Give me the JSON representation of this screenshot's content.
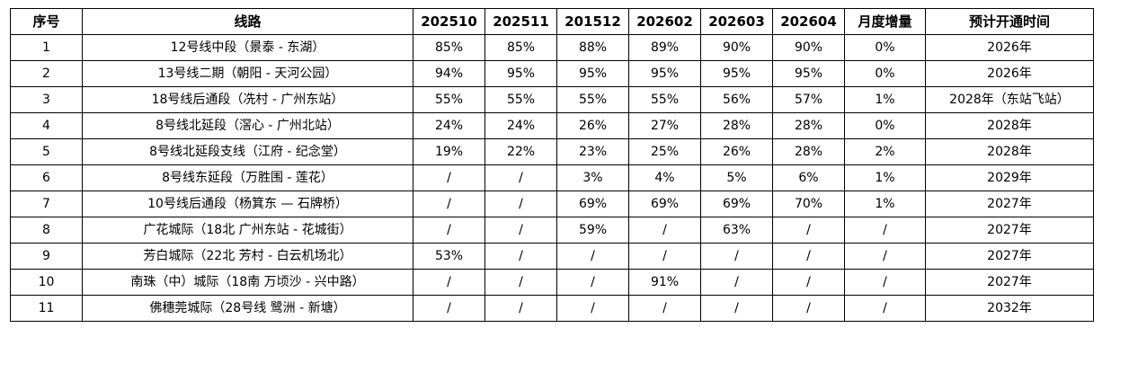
{
  "headers": [
    "序号",
    "线路",
    "202510",
    "202511",
    "201512",
    "202602",
    "202603",
    "202604",
    "月度增量",
    "预计开通时间"
  ],
  "rows": [
    [
      "1",
      "12号线中段（景泰 - 东湖）",
      "85%",
      "85%",
      "88%",
      "89%",
      "90%",
      "90%",
      "0%",
      "2026年"
    ],
    [
      "2",
      "13号线二期（朝阳 - 天河公园）",
      "94%",
      "95%",
      "95%",
      "95%",
      "95%",
      "95%",
      "0%",
      "2026年"
    ],
    [
      "3",
      "18号线后通段（冼村 - 广州东站）",
      "55%",
      "55%",
      "55%",
      "55%",
      "56%",
      "57%",
      "1%",
      "2028年（东站飞站）"
    ],
    [
      "4",
      "8号线北延段（滘心 - 广州北站）",
      "24%",
      "24%",
      "26%",
      "27%",
      "28%",
      "28%",
      "0%",
      "2028年"
    ],
    [
      "5",
      "8号线北延段支线（江府 - 纪念堂）",
      "19%",
      "22%",
      "23%",
      "25%",
      "26%",
      "28%",
      "2%",
      "2028年"
    ],
    [
      "6",
      "8号线东延段（万胜围 - 莲花）",
      "/",
      "/",
      "3%",
      "4%",
      "5%",
      "6%",
      "1%",
      "2029年"
    ],
    [
      "7",
      "10号线后通段（杨箕东 — 石牌桥）",
      "/",
      "/",
      "69%",
      "69%",
      "69%",
      "70%",
      "1%",
      "2027年"
    ],
    [
      "8",
      "广花城际（18北 广州东站 - 花城街）",
      "/",
      "/",
      "59%",
      "/",
      "63%",
      "/",
      "/",
      "2027年"
    ],
    [
      "9",
      "芳白城际（22北 芳村 - 白云机场北）",
      "53%",
      "/",
      "/",
      "/",
      "/",
      "/",
      "/",
      "2027年"
    ],
    [
      "10",
      "南珠（中）城际（18南 万顷沙 - 兴中路）",
      "/",
      "/",
      "/",
      "91%",
      "/",
      "/",
      "/",
      "2027年"
    ],
    [
      "11",
      "佛穗莞城际（28号线 鹭洲 - 新塘）",
      "/",
      "/",
      "/",
      "/",
      "/",
      "/",
      "/",
      "2032年"
    ]
  ]
}
